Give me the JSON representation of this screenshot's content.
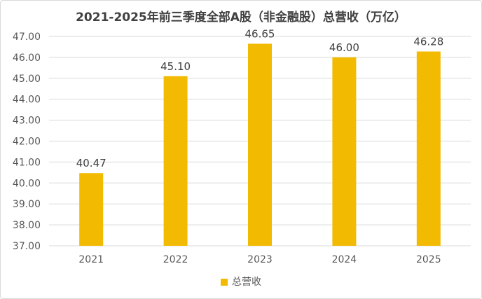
{
  "chart_data": {
    "type": "bar",
    "title": "2021-2025年前三季度全部A股（非金融股）总营收（万亿）",
    "categories": [
      "2021",
      "2022",
      "2023",
      "2024",
      "2025"
    ],
    "series": [
      {
        "name": "总营收",
        "values": [
          40.47,
          45.1,
          46.65,
          46.0,
          46.28
        ],
        "color": "#F2BA00"
      }
    ],
    "data_labels": [
      "40.47",
      "45.10",
      "46.65",
      "46.00",
      "46.28"
    ],
    "ylim": [
      37,
      47
    ],
    "y_ticks": [
      37,
      38,
      39,
      40,
      41,
      42,
      43,
      44,
      45,
      46,
      47
    ],
    "y_tick_labels": [
      "37.00",
      "38.00",
      "39.00",
      "40.00",
      "41.00",
      "42.00",
      "43.00",
      "44.00",
      "45.00",
      "46.00",
      "47.00"
    ],
    "grid": true,
    "legend_position": "bottom",
    "xlabel": "",
    "ylabel": "",
    "colors": {
      "bar": "#F2BA00",
      "grid": "#d9d9d9",
      "text": "#595959",
      "title": "#404040"
    }
  }
}
